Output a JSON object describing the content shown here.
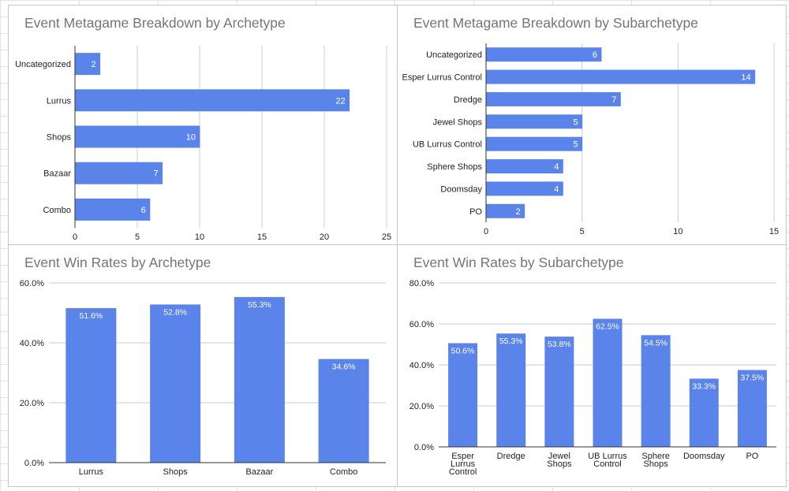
{
  "colors": {
    "bar": "#5b84ea",
    "grid": "#cccccc",
    "axis": "#333333",
    "label": "#222222",
    "data_label": "#ffffff",
    "title": "#757575"
  },
  "chart_data": [
    {
      "type": "bar",
      "orientation": "horizontal",
      "title": "Event Metagame Breakdown by Archetype",
      "categories": [
        "Uncategorized",
        "Lurrus",
        "Shops",
        "Bazaar",
        "Combo"
      ],
      "values": [
        2,
        22,
        10,
        7,
        6
      ],
      "xlim": [
        0,
        25
      ],
      "ticks": [
        "0",
        "5",
        "10",
        "15",
        "20",
        "25"
      ],
      "data_labels": [
        "2",
        "22",
        "10",
        "7",
        "6"
      ],
      "grid": true
    },
    {
      "type": "bar",
      "orientation": "horizontal",
      "title": "Event Metagame Breakdown by Subarchetype",
      "categories": [
        "Uncategorized",
        "Esper Lurrus Control",
        "Dredge",
        "Jewel Shops",
        "UB Lurrus Control",
        "Sphere Shops",
        "Doomsday",
        "PO"
      ],
      "values": [
        6,
        14,
        7,
        5,
        5,
        4,
        4,
        2
      ],
      "xlim": [
        0,
        15
      ],
      "ticks": [
        "0",
        "5",
        "10",
        "15"
      ],
      "data_labels": [
        "6",
        "14",
        "7",
        "5",
        "5",
        "4",
        "4",
        "2"
      ],
      "grid": true
    },
    {
      "type": "bar",
      "orientation": "vertical",
      "title": "Event Win Rates by Archetype",
      "categories": [
        "Lurrus",
        "Shops",
        "Bazaar",
        "Combo"
      ],
      "values": [
        51.6,
        52.8,
        55.3,
        34.6
      ],
      "ylim": [
        0,
        60
      ],
      "ticks": [
        "0.0%",
        "20.0%",
        "40.0%",
        "60.0%"
      ],
      "data_labels": [
        "51.6%",
        "52.8%",
        "55.3%",
        "34.6%"
      ],
      "grid": true
    },
    {
      "type": "bar",
      "orientation": "vertical",
      "title": "Event Win Rates by Subarchetype",
      "categories": [
        "Esper Lurrus Control",
        "Dredge",
        "Jewel Shops",
        "UB Lurrus Control",
        "Sphere Shops",
        "Doomsday",
        "PO"
      ],
      "category_lines": [
        [
          "Esper",
          "Lurrus",
          "Control"
        ],
        [
          "Dredge"
        ],
        [
          "Jewel",
          "Shops"
        ],
        [
          "UB Lurrus",
          "Control"
        ],
        [
          "Sphere",
          "Shops"
        ],
        [
          "Doomsday"
        ],
        [
          "PO"
        ]
      ],
      "values": [
        50.6,
        55.3,
        53.8,
        62.5,
        54.5,
        33.3,
        37.5
      ],
      "ylim": [
        0,
        80
      ],
      "ticks": [
        "0.0%",
        "20.0%",
        "40.0%",
        "60.0%",
        "80.0%"
      ],
      "data_labels": [
        "50.6%",
        "55.3%",
        "53.8%",
        "62.5%",
        "54.5%",
        "33.3%",
        "37.5%"
      ],
      "grid": true
    }
  ]
}
